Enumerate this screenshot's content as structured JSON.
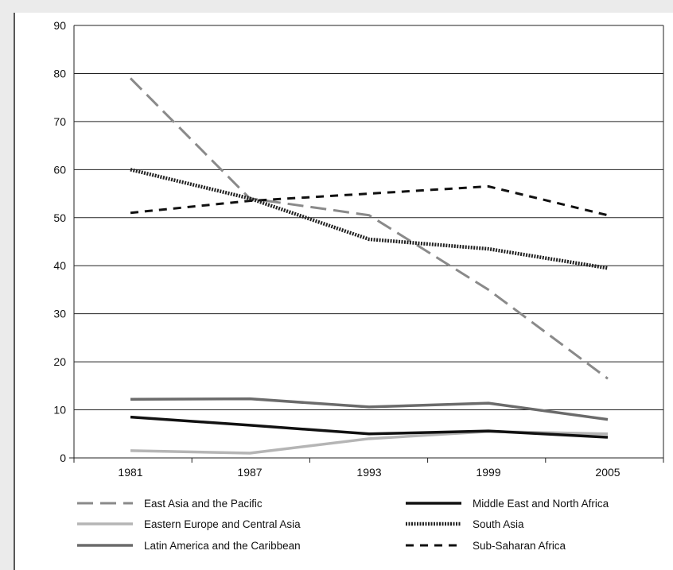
{
  "chart_data": {
    "type": "line",
    "title": "",
    "xlabel": "",
    "ylabel": "",
    "categories": [
      "1981",
      "1987",
      "1993",
      "1999",
      "2005"
    ],
    "ylim": [
      0,
      90
    ],
    "yticks": [
      0,
      10,
      20,
      30,
      40,
      50,
      60,
      70,
      80,
      90
    ],
    "grid": true,
    "legend_position": "bottom",
    "series": [
      {
        "name": "East Asia and the Pacific",
        "values": [
          79,
          54,
          50.5,
          35,
          16.5
        ],
        "color": "#8a8a8a",
        "dash": "long-dash"
      },
      {
        "name": "Eastern Europe and Central Asia",
        "values": [
          1.5,
          1,
          4,
          5.5,
          5
        ],
        "color": "#b5b5b5",
        "dash": "solid"
      },
      {
        "name": "Latin America and the Caribbean",
        "values": [
          12.2,
          12.3,
          10.6,
          11.4,
          8
        ],
        "color": "#6b6b6b",
        "dash": "solid"
      },
      {
        "name": "Middle East and North Africa",
        "values": [
          8.5,
          6.8,
          5,
          5.6,
          4.3
        ],
        "color": "#111111",
        "dash": "solid"
      },
      {
        "name": "South Asia",
        "values": [
          60,
          54,
          45.5,
          43.5,
          39.5
        ],
        "color": "#222222",
        "dash": "dotted"
      },
      {
        "name": "Sub-Saharan Africa",
        "values": [
          51,
          53.5,
          55,
          56.5,
          50.5
        ],
        "color": "#111111",
        "dash": "short-dash"
      }
    ]
  }
}
